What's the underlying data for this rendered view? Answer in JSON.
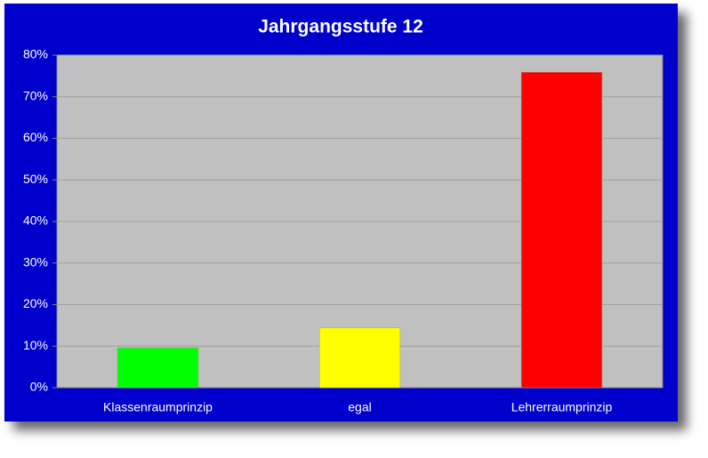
{
  "chart_data": {
    "type": "bar",
    "title": "Jahrgangsstufe 12",
    "categories": [
      "Klassenraumprinzip",
      "egal",
      "Lehrerraumprinzip"
    ],
    "values": [
      9.6,
      14.4,
      75.9
    ],
    "colors": [
      "#00ff00",
      "#ffff00",
      "#ff0000"
    ],
    "ylim": [
      0,
      80
    ],
    "yticks": [
      {
        "value": 0,
        "label": "0%"
      },
      {
        "value": 10,
        "label": "10%"
      },
      {
        "value": 20,
        "label": "20%"
      },
      {
        "value": 30,
        "label": "30%"
      },
      {
        "value": 40,
        "label": "40%"
      },
      {
        "value": 50,
        "label": "50%"
      },
      {
        "value": 60,
        "label": "60%"
      },
      {
        "value": 70,
        "label": "70%"
      },
      {
        "value": 80,
        "label": "80%"
      }
    ],
    "grid": true
  }
}
